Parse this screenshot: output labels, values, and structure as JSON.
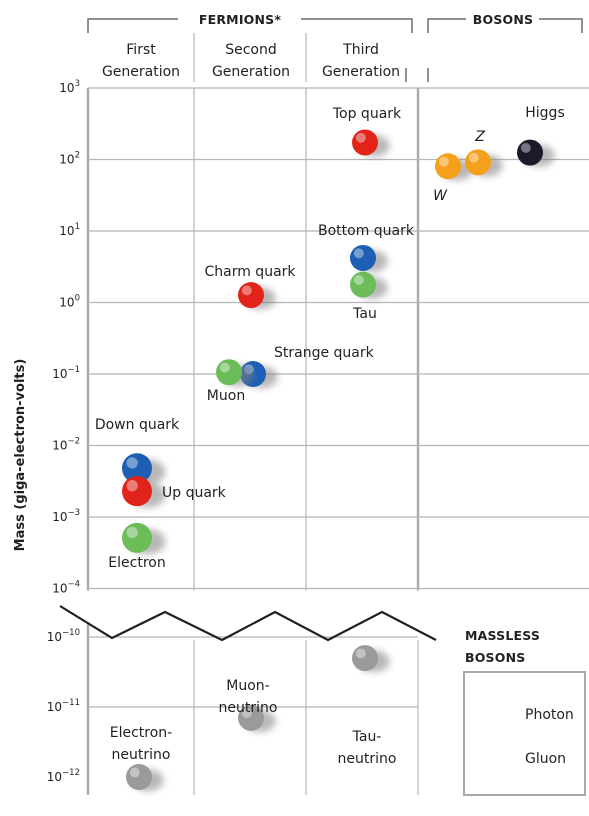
{
  "chart_data": {
    "type": "scatter",
    "title": "",
    "ylabel": "Mass (giga-electron-volts)",
    "yscale": "log",
    "headers": {
      "fermions": "FERMIONS*",
      "bosons": "BOSONS",
      "massless": [
        "MASSLESS",
        "BOSONS"
      ]
    },
    "columns": [
      [
        "First",
        "Generation"
      ],
      [
        "Second",
        "Generation"
      ],
      [
        "Third",
        "Generation"
      ]
    ],
    "upper_ticks": [
      "3",
      "2",
      "1",
      "0",
      "-1",
      "-2",
      "-3",
      "-4"
    ],
    "lower_ticks": [
      "-10",
      "-11",
      "-12"
    ],
    "particles": [
      {
        "name": "Top quark",
        "column": "third",
        "mass_gev": 173,
        "color": "#e2231a",
        "label": [
          "Top quark"
        ]
      },
      {
        "name": "Bottom quark",
        "column": "third",
        "mass_gev": 4.2,
        "color": "#1c5fb3",
        "label": [
          "Bottom quark"
        ]
      },
      {
        "name": "Tau",
        "column": "third",
        "mass_gev": 1.78,
        "color": "#6cbd5a",
        "label": [
          "Tau"
        ]
      },
      {
        "name": "Charm quark",
        "column": "second",
        "mass_gev": 1.27,
        "color": "#e2231a",
        "label": [
          "Charm quark"
        ]
      },
      {
        "name": "Strange quark",
        "column": "second",
        "mass_gev": 0.1,
        "color": "#1c5fb3",
        "label": [
          "Strange quark"
        ]
      },
      {
        "name": "Muon",
        "column": "second",
        "mass_gev": 0.106,
        "color": "#6cbd5a",
        "label": [
          "Muon"
        ]
      },
      {
        "name": "Down quark",
        "column": "first",
        "mass_gev": 0.0048,
        "color": "#1c5fb3",
        "label": [
          "Down quark"
        ]
      },
      {
        "name": "Up quark",
        "column": "first",
        "mass_gev": 0.0023,
        "color": "#e2231a",
        "label": [
          "Up quark"
        ]
      },
      {
        "name": "Electron",
        "column": "first",
        "mass_gev": 0.000511,
        "color": "#6cbd5a",
        "label": [
          "Electron"
        ]
      },
      {
        "name": "W",
        "column": "bosons",
        "mass_gev": 80.4,
        "color": "#f5a01a",
        "label": [
          "W"
        ]
      },
      {
        "name": "Z",
        "column": "bosons",
        "mass_gev": 91.2,
        "color": "#f5a01a",
        "label": [
          "Z"
        ]
      },
      {
        "name": "Higgs",
        "column": "bosons",
        "mass_gev": 125,
        "color": "#1a1a2a",
        "label": [
          "Higgs"
        ]
      },
      {
        "name": "Electron-neutrino",
        "column": "first",
        "mass_gev": 1e-12,
        "color": "#9a9a9a",
        "label": [
          "Electron-",
          "neutrino"
        ]
      },
      {
        "name": "Muon-neutrino",
        "column": "second",
        "mass_gev": 7e-12,
        "color": "#9a9a9a",
        "label": [
          "Muon-",
          "neutrino"
        ]
      },
      {
        "name": "Tau-neutrino",
        "column": "third",
        "mass_gev": 5e-11,
        "color": "#9a9a9a",
        "label": [
          "Tau-",
          "neutrino"
        ]
      }
    ],
    "massless_bosons": [
      {
        "name": "Photon",
        "color": "#f7c51c"
      },
      {
        "name": "Gluon",
        "color": "#7b5ec4"
      }
    ]
  }
}
